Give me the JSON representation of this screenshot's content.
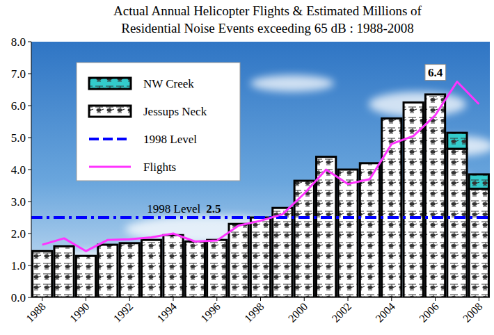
{
  "chart_data": {
    "type": "bar",
    "title": "Actual Annual Helicopter Flights & Estimated Millions of Residential Noise Events exceeding 65 dB : 1988-2008",
    "x": [
      1988,
      1989,
      1990,
      1991,
      1992,
      1993,
      1994,
      1995,
      1996,
      1997,
      1998,
      1999,
      2000,
      2001,
      2002,
      2003,
      2004,
      2005,
      2006,
      2007,
      2008
    ],
    "xlim": [
      1987.5,
      2008.5
    ],
    "xticks": [
      1988,
      1990,
      1992,
      1994,
      1996,
      1998,
      2000,
      2002,
      2004,
      2006,
      2008
    ],
    "ylim": [
      0,
      8
    ],
    "yticks": [
      {
        "value": 0,
        "label": "0.0"
      },
      {
        "value": 1,
        "label": "1.0"
      },
      {
        "value": 2,
        "label": "2.0"
      },
      {
        "value": 3,
        "label": "3.0"
      },
      {
        "value": 4,
        "label": "4.0"
      },
      {
        "value": 5,
        "label": "5.0"
      },
      {
        "value": 6,
        "label": "6.0"
      },
      {
        "value": 7,
        "label": "7.0"
      },
      {
        "value": 8,
        "label": "8.0"
      }
    ],
    "stacked": true,
    "grid": false,
    "legend": "top-left",
    "series": [
      {
        "name": "Jessups Neck",
        "type": "bar",
        "color": "#ffffff",
        "values": [
          1.45,
          1.6,
          1.3,
          1.65,
          1.7,
          1.8,
          1.95,
          1.75,
          1.8,
          2.3,
          2.5,
          2.8,
          3.65,
          4.4,
          4.0,
          4.2,
          5.6,
          6.1,
          6.35,
          4.65,
          3.4
        ]
      },
      {
        "name": "NW Creek",
        "type": "bar",
        "color": "#33cccc",
        "values": [
          null,
          null,
          null,
          null,
          null,
          null,
          null,
          null,
          null,
          null,
          null,
          null,
          null,
          null,
          null,
          null,
          null,
          null,
          null,
          0.5,
          0.45
        ]
      },
      {
        "name": "Flights",
        "type": "line",
        "color": "#ff33ff",
        "line_style": "solid",
        "values": [
          1.65,
          1.85,
          1.45,
          1.8,
          1.82,
          1.88,
          2.0,
          1.75,
          1.78,
          2.25,
          2.4,
          2.6,
          3.25,
          4.0,
          3.55,
          3.7,
          4.8,
          5.05,
          5.7,
          6.75,
          6.05
        ]
      }
    ],
    "reference_lines": [
      {
        "name": "1998 Level",
        "value": 2.5,
        "color": "#0000ff",
        "line_style": "dashdot"
      }
    ],
    "annotations": [
      {
        "text": "6.4",
        "x": 2006,
        "y": 6.4
      }
    ]
  }
}
